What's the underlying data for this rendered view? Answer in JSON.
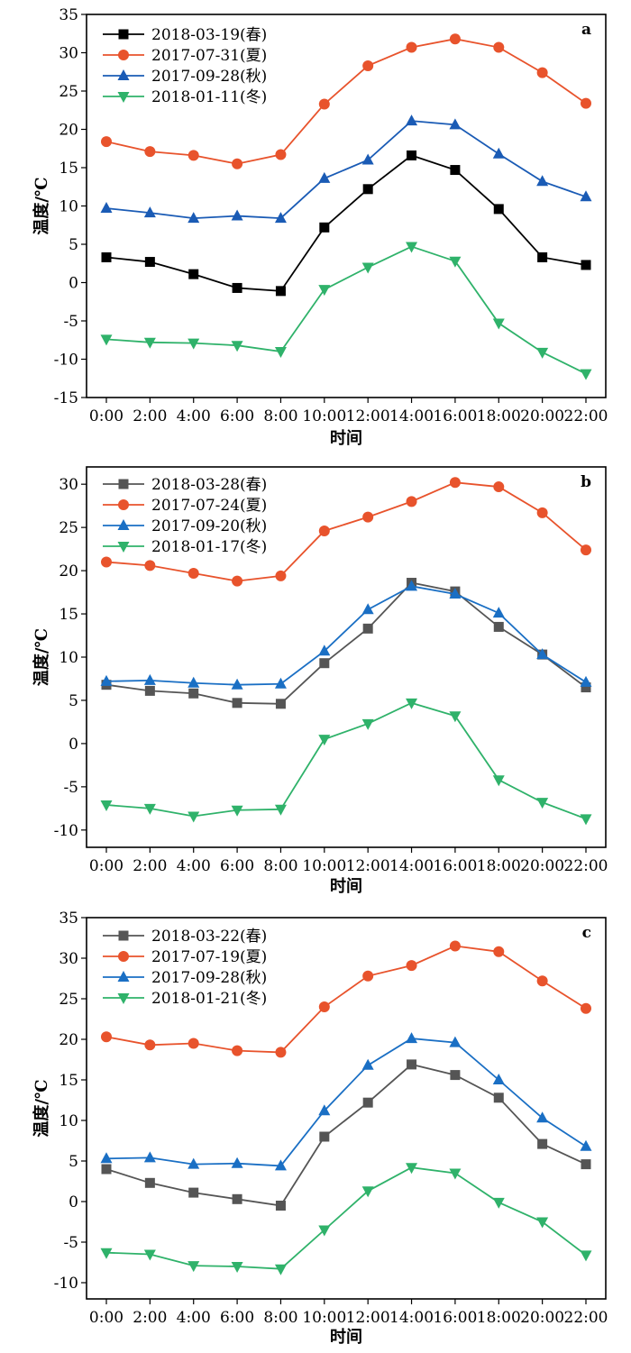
{
  "chart_data": [
    {
      "type": "line",
      "panel_label": "a",
      "x": [
        "0:00",
        "2:00",
        "4:00",
        "6:00",
        "8:00",
        "10:00",
        "12:00",
        "14:00",
        "16:00",
        "18:00",
        "20:00",
        "22:00"
      ],
      "xlabel": "时间",
      "ylabel": "温度/℃",
      "ylim": [
        -15,
        35
      ],
      "yticks": [
        -15,
        -10,
        -5,
        0,
        5,
        10,
        15,
        20,
        25,
        30,
        35
      ],
      "legend": "top-left",
      "series": [
        {
          "name": "2018-03-19(春)",
          "color": "#000000",
          "marker": "square",
          "values": [
            3.3,
            2.7,
            1.1,
            -0.7,
            -1.1,
            7.2,
            12.2,
            16.6,
            14.7,
            9.6,
            3.3,
            2.3
          ]
        },
        {
          "name": "2017-07-31(夏)",
          "color": "#e8532c",
          "marker": "circle",
          "values": [
            18.4,
            17.1,
            16.6,
            15.5,
            16.7,
            23.3,
            28.3,
            30.7,
            31.8,
            30.7,
            27.4,
            23.4
          ]
        },
        {
          "name": "2017-09-28(秋)",
          "color": "#1a5bb5",
          "marker": "triangle-up",
          "values": [
            9.7,
            9.1,
            8.4,
            8.7,
            8.4,
            13.6,
            16.0,
            21.1,
            20.6,
            16.8,
            13.2,
            11.2
          ]
        },
        {
          "name": "2018-01-11(冬)",
          "color": "#2fb26a",
          "marker": "triangle-down",
          "values": [
            -7.4,
            -7.8,
            -7.9,
            -8.2,
            -9.0,
            -0.9,
            2.0,
            4.7,
            2.8,
            -5.3,
            -9.1,
            -11.9
          ]
        }
      ]
    },
    {
      "type": "line",
      "panel_label": "b",
      "x": [
        "0:00",
        "2:00",
        "4:00",
        "6:00",
        "8:00",
        "10:00",
        "12:00",
        "14:00",
        "16:00",
        "18:00",
        "20:00",
        "22:00"
      ],
      "xlabel": "时间",
      "ylabel": "温度/℃",
      "ylim": [
        -12,
        32
      ],
      "yticks": [
        -10,
        -5,
        0,
        5,
        10,
        15,
        20,
        25,
        30
      ],
      "legend": "top-left",
      "series": [
        {
          "name": "2018-03-28(春)",
          "color": "#555555",
          "marker": "square",
          "values": [
            6.8,
            6.1,
            5.8,
            4.7,
            4.6,
            9.3,
            13.3,
            18.6,
            17.6,
            13.5,
            10.3,
            6.5
          ]
        },
        {
          "name": "2017-07-24(夏)",
          "color": "#e8532c",
          "marker": "circle",
          "values": [
            21.0,
            20.6,
            19.7,
            18.8,
            19.4,
            24.6,
            26.2,
            28.0,
            30.2,
            29.7,
            26.7,
            22.4
          ]
        },
        {
          "name": "2017-09-20(秋)",
          "color": "#1a6fc4",
          "marker": "triangle-up",
          "values": [
            7.2,
            7.3,
            7.0,
            6.8,
            6.9,
            10.7,
            15.5,
            18.2,
            17.3,
            15.1,
            10.3,
            7.1
          ]
        },
        {
          "name": "2018-01-17(冬)",
          "color": "#2fb26a",
          "marker": "triangle-down",
          "values": [
            -7.1,
            -7.5,
            -8.4,
            -7.7,
            -7.6,
            0.5,
            2.3,
            4.7,
            3.2,
            -4.2,
            -6.8,
            -8.7
          ]
        }
      ]
    },
    {
      "type": "line",
      "panel_label": "c",
      "x": [
        "0:00",
        "2:00",
        "4:00",
        "6:00",
        "8:00",
        "10:00",
        "12:00",
        "14:00",
        "16:00",
        "18:00",
        "20:00",
        "22:00"
      ],
      "xlabel": "时间",
      "ylabel": "温度/℃",
      "ylim": [
        -12,
        35
      ],
      "yticks": [
        -10,
        -5,
        0,
        5,
        10,
        15,
        20,
        25,
        30,
        35
      ],
      "legend": "top-left",
      "series": [
        {
          "name": "2018-03-22(春)",
          "color": "#555555",
          "marker": "square",
          "values": [
            4.0,
            2.3,
            1.1,
            0.3,
            -0.5,
            8.0,
            12.2,
            16.9,
            15.6,
            12.8,
            7.1,
            4.6
          ]
        },
        {
          "name": "2017-07-19(夏)",
          "color": "#e8532c",
          "marker": "circle",
          "values": [
            20.3,
            19.3,
            19.5,
            18.6,
            18.4,
            24.0,
            27.8,
            29.1,
            31.5,
            30.8,
            27.2,
            23.8
          ]
        },
        {
          "name": "2017-09-28(秋)",
          "color": "#1a6fc4",
          "marker": "triangle-up",
          "values": [
            5.3,
            5.4,
            4.6,
            4.7,
            4.4,
            11.2,
            16.8,
            20.1,
            19.6,
            15.0,
            10.3,
            6.8
          ]
        },
        {
          "name": "2018-01-21(冬)",
          "color": "#2fb26a",
          "marker": "triangle-down",
          "values": [
            -6.3,
            -6.5,
            -7.9,
            -8.0,
            -8.3,
            -3.5,
            1.3,
            4.2,
            3.5,
            -0.1,
            -2.5,
            -6.6
          ]
        }
      ]
    }
  ]
}
